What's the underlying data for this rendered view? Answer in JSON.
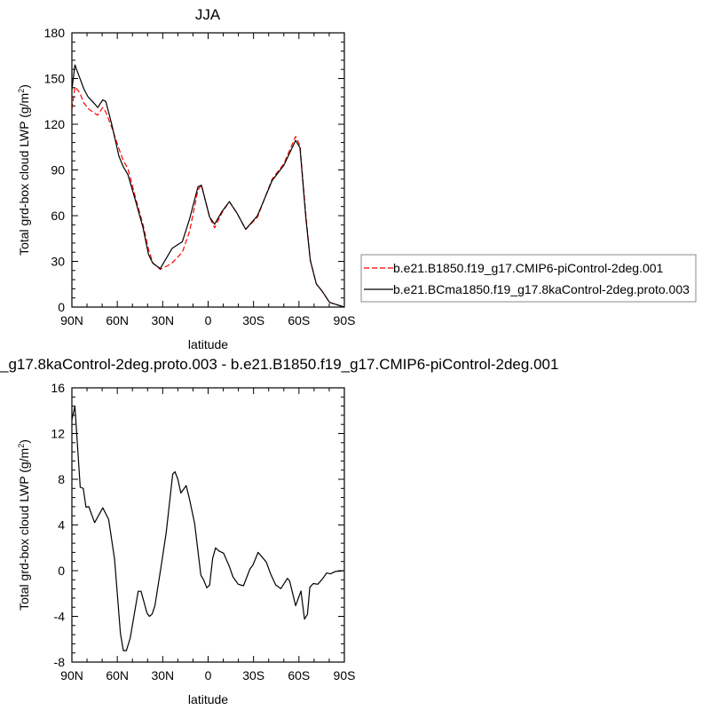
{
  "chart_data": [
    {
      "type": "line",
      "title": "JJA",
      "xlabel": "latitude",
      "ylabel": "Total grd-box cloud LWP (g/m",
      "ylabel_sup": "2",
      "ylabel_end": ")",
      "xlim": [
        90,
        -90
      ],
      "ylim": [
        0,
        180
      ],
      "xticks": [
        90,
        60,
        30,
        0,
        -30,
        -60,
        -90
      ],
      "xtick_labels": [
        "90N",
        "60N",
        "30N",
        "0",
        "30S",
        "60S",
        "90S"
      ],
      "yticks": [
        0,
        30,
        60,
        90,
        120,
        150,
        180
      ],
      "ytick_labels": [
        "0",
        "30",
        "60",
        "90",
        "120",
        "150",
        "180"
      ],
      "legend_placement": "right",
      "series": [
        {
          "name": "b.e21.B1850.f19_g17.CMIP6-piControl-2deg.001",
          "color": "#ff0000",
          "style": "dashed",
          "points": [
            [
              90,
              130
            ],
            [
              88,
              144.5
            ],
            [
              85,
              141
            ],
            [
              82,
              134
            ],
            [
              79,
              130
            ],
            [
              76,
              128
            ],
            [
              73,
              126
            ],
            [
              69.6,
              131
            ],
            [
              67.6,
              128
            ],
            [
              63.7,
              118
            ],
            [
              58.9,
              104
            ],
            [
              56,
              96
            ],
            [
              53,
              91
            ],
            [
              48,
              72
            ],
            [
              43,
              54
            ],
            [
              39.4,
              38
            ],
            [
              36.5,
              29
            ],
            [
              31.6,
              24.7
            ],
            [
              27,
              27
            ],
            [
              24,
              28.8
            ],
            [
              17,
              36
            ],
            [
              12.2,
              50
            ],
            [
              6.7,
              77
            ],
            [
              4.4,
              80
            ],
            [
              -1,
              59
            ],
            [
              -4.3,
              52
            ],
            [
              -9.2,
              62
            ],
            [
              -14,
              69.2
            ],
            [
              -19,
              61.8
            ],
            [
              -24.8,
              51
            ],
            [
              -32.6,
              59
            ],
            [
              -42.3,
              84
            ],
            [
              -50,
              94
            ],
            [
              -57.8,
              112
            ],
            [
              -60.7,
              106
            ],
            [
              -64.6,
              60
            ],
            [
              -67.5,
              31
            ],
            [
              -71.5,
              15.2
            ],
            [
              -75.4,
              10.3
            ],
            [
              -80.2,
              3.1
            ],
            [
              -90,
              0
            ]
          ]
        },
        {
          "name": "b.e21.BCma1850.f19_g17.8kaControl-2deg.proto.003",
          "color": "#000000",
          "style": "solid",
          "points": [
            [
              90,
              142.5
            ],
            [
              88,
              159
            ],
            [
              85,
              151
            ],
            [
              82,
              143
            ],
            [
              79.3,
              138
            ],
            [
              76.4,
              135
            ],
            [
              72.9,
              131
            ],
            [
              69.6,
              136
            ],
            [
              67.6,
              135
            ],
            [
              63.7,
              120
            ],
            [
              58.9,
              99
            ],
            [
              56,
              92
            ],
            [
              53,
              87
            ],
            [
              48,
              70
            ],
            [
              43,
              52
            ],
            [
              39.4,
              34.6
            ],
            [
              36.5,
              28.8
            ],
            [
              31.6,
              25.3
            ],
            [
              23.8,
              38.5
            ],
            [
              17,
              43
            ],
            [
              12.2,
              58
            ],
            [
              6.7,
              79
            ],
            [
              4.4,
              80
            ],
            [
              -1,
              59
            ],
            [
              -4.3,
              54.4
            ],
            [
              -9.2,
              62.8
            ],
            [
              -14,
              69.2
            ],
            [
              -19,
              61.8
            ],
            [
              -24.8,
              51
            ],
            [
              -32.6,
              60
            ],
            [
              -42.3,
              83
            ],
            [
              -50,
              93
            ],
            [
              -57.8,
              109.4
            ],
            [
              -60.7,
              104.6
            ],
            [
              -64.6,
              58
            ],
            [
              -67.5,
              30.7
            ],
            [
              -71.5,
              15.2
            ],
            [
              -75.4,
              10.3
            ],
            [
              -80.2,
              3.1
            ],
            [
              -90,
              0
            ]
          ]
        }
      ]
    },
    {
      "type": "line",
      "title": "_g17.8kaControl-2deg.proto.003 - b.e21.B1850.f19_g17.CMIP6-piControl-2deg.001",
      "xlabel": "latitude",
      "ylabel": "Total grd-box cloud LWP (g/m",
      "ylabel_sup": "2",
      "ylabel_end": ")",
      "xlim": [
        90,
        -90
      ],
      "ylim": [
        -8,
        16
      ],
      "xticks": [
        90,
        60,
        30,
        0,
        -30,
        -60,
        -90
      ],
      "xtick_labels": [
        "90N",
        "60N",
        "30N",
        "0",
        "30S",
        "60S",
        "90S"
      ],
      "yticks": [
        -8,
        -4,
        0,
        4,
        8,
        12,
        16
      ],
      "ytick_labels": [
        "-8",
        "-4",
        "0",
        "4",
        "8",
        "12",
        "16"
      ],
      "series": [
        {
          "color": "#000000",
          "style": "solid",
          "points": [
            [
              90,
              13.2
            ],
            [
              88,
              14.4
            ],
            [
              84.5,
              7.3
            ],
            [
              82.5,
              7.2
            ],
            [
              80.7,
              5.55
            ],
            [
              78.8,
              5.6
            ],
            [
              75,
              4.2
            ],
            [
              69.6,
              5.5
            ],
            [
              65.7,
              4.5
            ],
            [
              61.8,
              1.0
            ],
            [
              57.9,
              -5.5
            ],
            [
              56,
              -7.0
            ],
            [
              54,
              -7.0
            ],
            [
              51.5,
              -5.9
            ],
            [
              46.2,
              -1.8
            ],
            [
              44.3,
              -1.8
            ],
            [
              40.4,
              -3.7
            ],
            [
              38.8,
              -4.0
            ],
            [
              37,
              -3.8
            ],
            [
              35.1,
              -3.05
            ],
            [
              30.6,
              0.76
            ],
            [
              27.7,
              3.35
            ],
            [
              23.4,
              8.45
            ],
            [
              21.9,
              8.66
            ],
            [
              20,
              8.0
            ],
            [
              18,
              6.8
            ],
            [
              14.5,
              7.45
            ],
            [
              12.2,
              6.2
            ],
            [
              8.9,
              4.13
            ],
            [
              4.8,
              -0.4
            ],
            [
              3,
              -0.8
            ],
            [
              0.9,
              -1.5
            ],
            [
              -1,
              -1.26
            ],
            [
              -3,
              1.07
            ],
            [
              -4.9,
              2.0
            ],
            [
              -6.9,
              1.74
            ],
            [
              -10.2,
              1.53
            ],
            [
              -14,
              0.37
            ],
            [
              -16.4,
              -0.54
            ],
            [
              -19.9,
              -1.19
            ],
            [
              -23.4,
              -1.32
            ],
            [
              -27.7,
              0.16
            ],
            [
              -29.6,
              0.5
            ],
            [
              -33,
              1.6
            ],
            [
              -38.4,
              0.76
            ],
            [
              -41.3,
              -0.28
            ],
            [
              -44.6,
              -1.24
            ],
            [
              -48.1,
              -1.57
            ],
            [
              -52.4,
              -0.67
            ],
            [
              -53.9,
              -0.92
            ],
            [
              -57.8,
              -3.07
            ],
            [
              -61.3,
              -1.78
            ],
            [
              -63.7,
              -4.24
            ],
            [
              -65.6,
              -3.83
            ],
            [
              -67.2,
              -1.45
            ],
            [
              -69.5,
              -1.13
            ],
            [
              -72.4,
              -1.19
            ],
            [
              -75.4,
              -0.75
            ],
            [
              -78.3,
              -0.2
            ],
            [
              -80.8,
              -0.28
            ],
            [
              -84.1,
              -0.07
            ],
            [
              -90,
              0
            ]
          ]
        }
      ]
    }
  ]
}
